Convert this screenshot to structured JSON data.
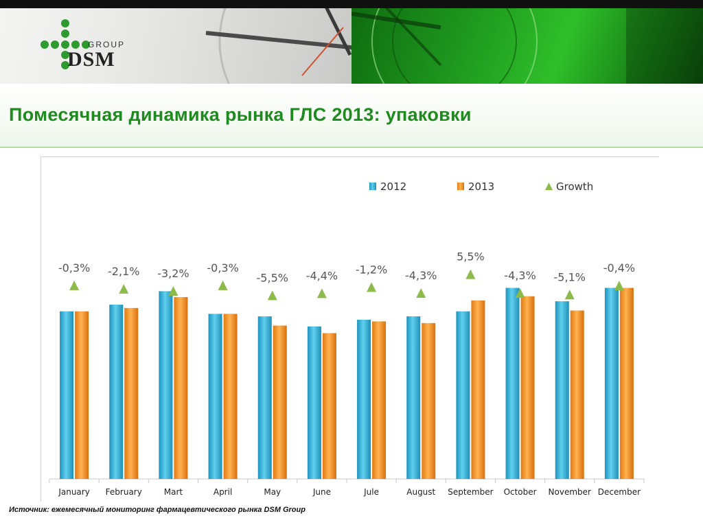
{
  "header": {
    "logo": {
      "top_text": "GROUP",
      "main_text": "DSM"
    },
    "title": "Помесячная динамика рынка ГЛС 2013: упаковки"
  },
  "chart_data": {
    "type": "bar",
    "categories": [
      "January",
      "February",
      "Mart",
      "April",
      "May",
      "June",
      "Jule",
      "August",
      "September",
      "October",
      "November",
      "December"
    ],
    "series": [
      {
        "name": "2012",
        "color": "#3bb7da",
        "values": [
          100,
          104,
          112,
          98.5,
          97,
          91,
          95,
          97,
          100,
          114,
          106,
          114
        ]
      },
      {
        "name": "2013",
        "color": "#f4962a",
        "values": [
          100,
          102,
          108.5,
          98.5,
          91.5,
          87,
          94,
          93,
          106.5,
          109,
          100.5,
          114
        ]
      },
      {
        "name": "Growth",
        "color": "#8dbb4b",
        "marker": "triangle",
        "labels": [
          "-0,3%",
          "-2,1%",
          "-3,2%",
          "-0,3%",
          "-5,5%",
          "-4,4%",
          "-1,2%",
          "-4,3%",
          "5,5%",
          "-4,3%",
          "-5,1%",
          "-0,4%"
        ],
        "values": [
          -0.3,
          -2.1,
          -3.2,
          -0.3,
          -5.5,
          -4.4,
          -1.2,
          -4.3,
          5.5,
          -4.3,
          -5.1,
          -0.4
        ]
      }
    ],
    "ylim": [
      0,
      140
    ],
    "grid": false,
    "legend_position": "top-right"
  },
  "footnote": "Источник: ежемесячный мониторинг фармацевтического рынка DSM Group"
}
